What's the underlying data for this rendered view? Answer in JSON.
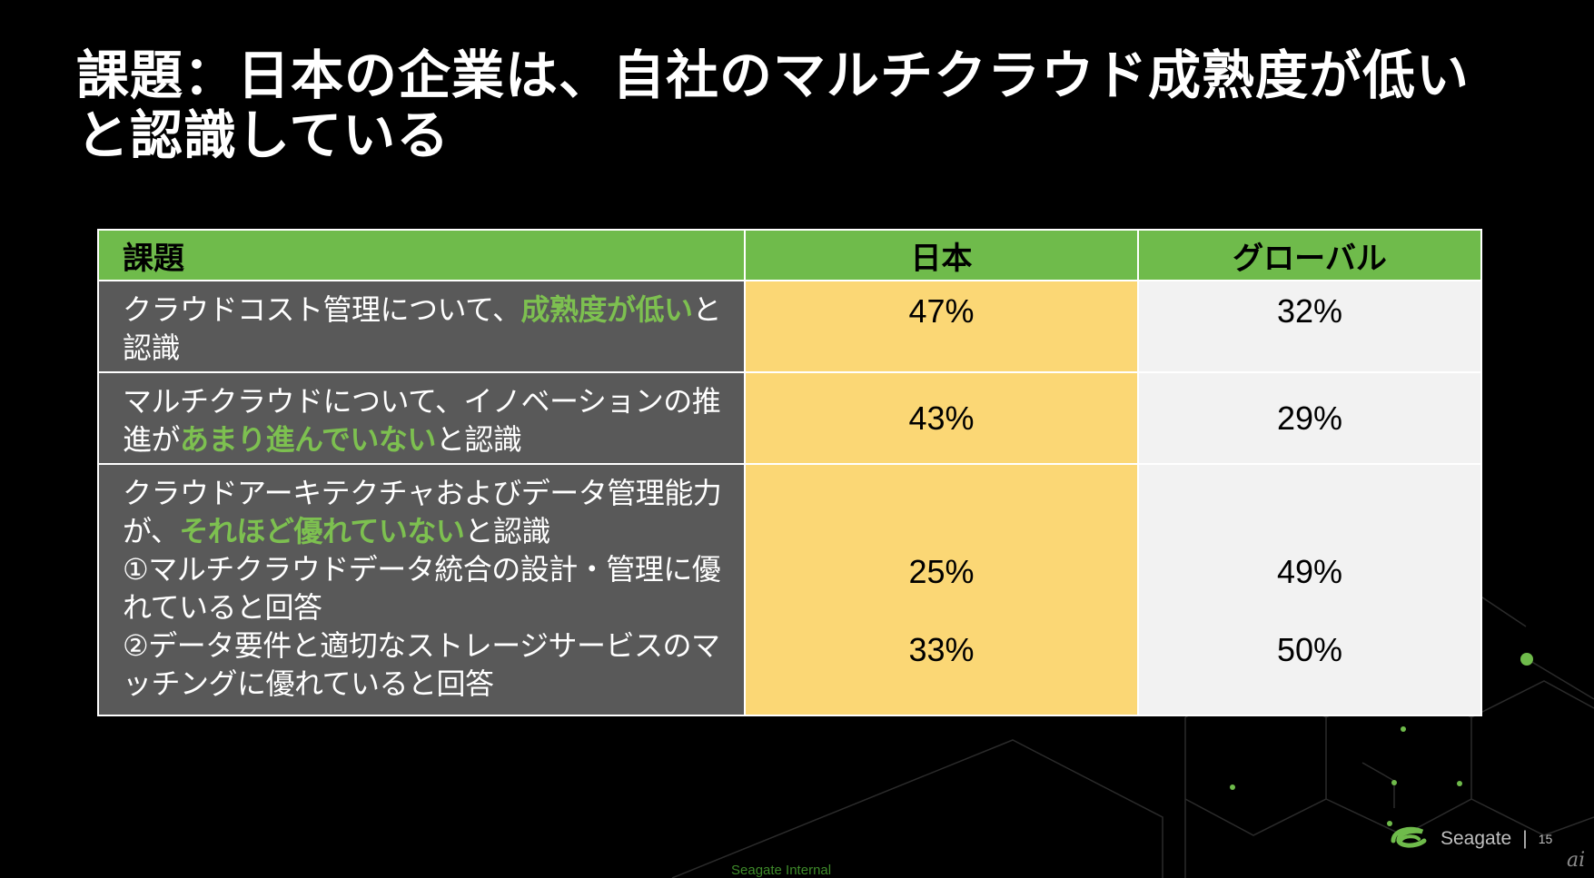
{
  "slide": {
    "title": "課題：日本の企業は、自社のマルチクラウド成熟度が低いと認識している",
    "footer_label": "Seagate Internal",
    "brand_name": "Seagate",
    "brand_separator": "|",
    "page_number": "15",
    "corner_mark": "ai"
  },
  "table": {
    "headers": [
      "課題",
      "日本",
      "グローバル"
    ],
    "rows": [
      {
        "topic_parts": [
          {
            "text": "クラウドコスト管理について、"
          },
          {
            "text": "成熟度が低い",
            "highlight": true
          },
          {
            "text": "と認識"
          }
        ],
        "japan": "47%",
        "global": "32%"
      },
      {
        "topic_parts": [
          {
            "text": "マルチクラウドについて、イノベーションの推進が"
          },
          {
            "text": "あまり進んでいない",
            "highlight": true
          },
          {
            "text": "と認識"
          }
        ],
        "japan": "43%",
        "global": "29%"
      },
      {
        "topic_parts": [
          {
            "text": "クラウドアーキテクチャおよびデータ管理能力が、"
          },
          {
            "text": "それほど優れていない",
            "highlight": true
          },
          {
            "text": "と認識"
          }
        ],
        "sub_items": [
          {
            "text": "①マルチクラウドデータ統合の設計・管理に優れていると回答",
            "japan": "25%",
            "global": "49%"
          },
          {
            "text": "②データ要件と適切なストレージサービスのマッチングに優れていると回答",
            "japan": "33%",
            "global": "50%"
          }
        ]
      }
    ]
  },
  "colors": {
    "background": "#000000",
    "header_green": "#6fbb4b",
    "highlight_green": "#7dc050",
    "topic_gray": "#595959",
    "japan_yellow": "#fbd775",
    "global_light": "#f2f2f2"
  }
}
